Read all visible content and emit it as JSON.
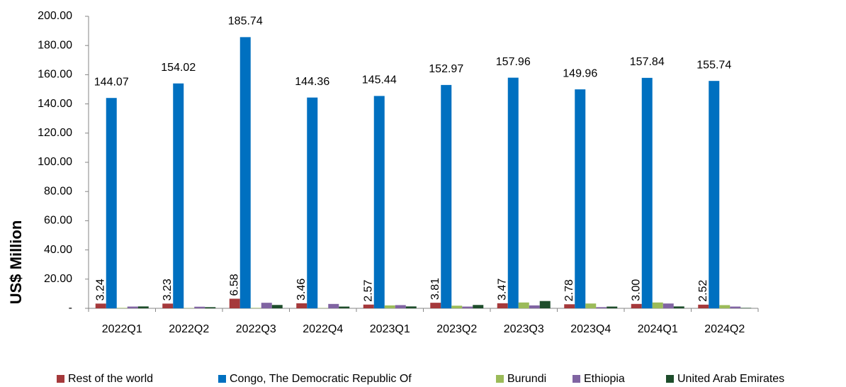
{
  "chart_data": {
    "type": "bar",
    "y_label": "US$ Million",
    "categories": [
      "2022Q1",
      "2022Q2",
      "2022Q3",
      "2022Q4",
      "2023Q1",
      "2023Q2",
      "2023Q3",
      "2023Q4",
      "2024Q1",
      "2024Q2"
    ],
    "ylim": [
      0,
      200
    ],
    "yticks": [
      {
        "value": 0,
        "label": "-"
      },
      {
        "value": 20,
        "label": "20.00"
      },
      {
        "value": 40,
        "label": "40.00"
      },
      {
        "value": 60,
        "label": "60.00"
      },
      {
        "value": 80,
        "label": "80.00"
      },
      {
        "value": 100,
        "label": "100.00"
      },
      {
        "value": 120,
        "label": "120.00"
      },
      {
        "value": 140,
        "label": "140.00"
      },
      {
        "value": 160,
        "label": "160.00"
      },
      {
        "value": 180,
        "label": "180.00"
      },
      {
        "value": 200,
        "label": "200.00"
      }
    ],
    "legend": "bottom",
    "series": [
      {
        "name": "Rest of the world",
        "color": "#a5393b",
        "values": [
          3.24,
          3.23,
          6.58,
          3.46,
          2.57,
          3.81,
          3.47,
          2.78,
          3.0,
          2.52
        ],
        "value_labels": [
          "3.24",
          "3.23",
          "6.58",
          "3.46",
          "2.57",
          "3.81",
          "3.47",
          "2.78",
          "3.00",
          "2.52"
        ]
      },
      {
        "name": "Congo, The Democratic Republic Of",
        "color": "#0070c0",
        "values": [
          144.07,
          154.02,
          185.74,
          144.36,
          145.44,
          152.97,
          157.96,
          149.96,
          157.84,
          155.74
        ],
        "value_labels": [
          "144.07",
          "154.02",
          "185.74",
          "144.36",
          "145.44",
          "152.97",
          "157.96",
          "149.96",
          "157.84",
          "155.74"
        ]
      },
      {
        "name": "Burundi",
        "color": "#9bbb59",
        "values": [
          0.3,
          0.2,
          0.3,
          0.2,
          2.0,
          1.8,
          4.0,
          3.3,
          4.0,
          2.2
        ]
      },
      {
        "name": "Ethiopia",
        "color": "#8064a2",
        "values": [
          1.2,
          1.1,
          3.8,
          3.0,
          2.2,
          1.2,
          2.0,
          0.8,
          3.3,
          1.2
        ]
      },
      {
        "name": "United Arab Emirates",
        "color": "#1e4d2b",
        "values": [
          1.3,
          0.8,
          2.3,
          1.2,
          1.3,
          2.3,
          5.0,
          1.2,
          1.3,
          0.3
        ]
      }
    ]
  }
}
